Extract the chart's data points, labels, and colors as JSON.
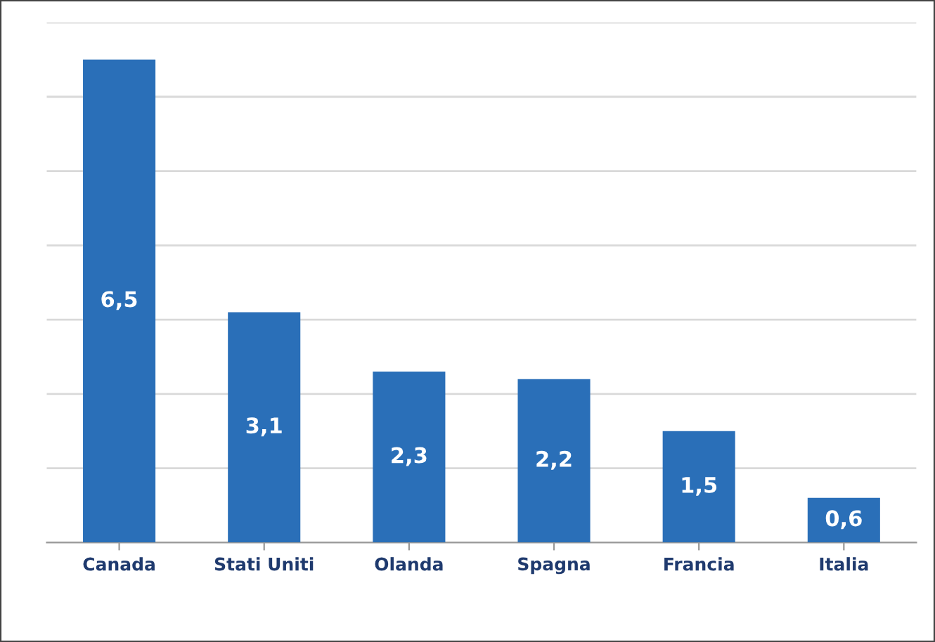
{
  "chart_data": {
    "type": "bar",
    "categories": [
      "Canada",
      "Stati Uniti",
      "Olanda",
      "Spagna",
      "Francia",
      "Italia"
    ],
    "values": [
      6.5,
      3.1,
      2.3,
      2.2,
      1.5,
      0.6
    ],
    "value_labels": [
      "6,5",
      "3,1",
      "2,3",
      "2,2",
      "1,5",
      "0,6"
    ],
    "color": "#2a6fb8",
    "ylim": [
      0,
      7
    ],
    "yticks": [
      {
        "value": 0,
        "label": null
      },
      {
        "value": 1,
        "label": null
      },
      {
        "value": 2,
        "label": null
      },
      {
        "value": 3,
        "label": null
      },
      {
        "value": 4,
        "label": null
      },
      {
        "value": 5,
        "label": null
      },
      {
        "value": 6,
        "label": null
      },
      {
        "value": 7,
        "label": null
      }
    ],
    "tick_labels": "x",
    "grid": "y"
  }
}
